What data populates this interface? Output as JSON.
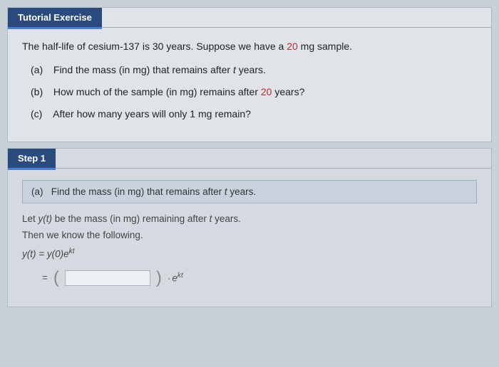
{
  "exercise": {
    "header": "Tutorial Exercise",
    "prompt_pre": "The half-life of cesium-137 is 30 years. Suppose we have a ",
    "highlight": "20",
    "prompt_post": " mg sample.",
    "parts": [
      {
        "label": "(a)",
        "text_pre": "Find the mass (in mg) that remains after ",
        "italic": "t",
        "text_post": " years."
      },
      {
        "label": "(b)",
        "text_pre": "How much of the sample (in mg) remains after ",
        "highlight": "20",
        "text_post": " years?"
      },
      {
        "label": "(c)",
        "text_full": "After how many years will only 1 mg remain?"
      }
    ]
  },
  "step1": {
    "header": "Step 1",
    "boxed": {
      "label": "(a)",
      "text_pre": "Find the mass (in mg) that remains after ",
      "italic": "t",
      "text_post": " years."
    },
    "line1_pre": "Let ",
    "line1_yt": "y(t)",
    "line1_mid": " be the mass (in mg) remaining after ",
    "line1_italic": "t",
    "line1_post": " years.",
    "line2": "Then we know the following.",
    "formula_lhs": "y(t)",
    "formula_eq": " = ",
    "formula_rhs_base": "y(0)e",
    "formula_rhs_exp": "kt",
    "input_equals": "=",
    "tail_dot": "·",
    "tail_base": "e",
    "tail_exp": "kt"
  },
  "colors": {
    "header_bg": "#2b4a7d",
    "accent_underline": "#4a7fd6",
    "body_bg": "#c8d0d8",
    "panel_bg": "#e0e4e8",
    "step_bg": "#d4dadf",
    "box_bg": "#c8d2dc",
    "highlight_text": "#b03030"
  }
}
